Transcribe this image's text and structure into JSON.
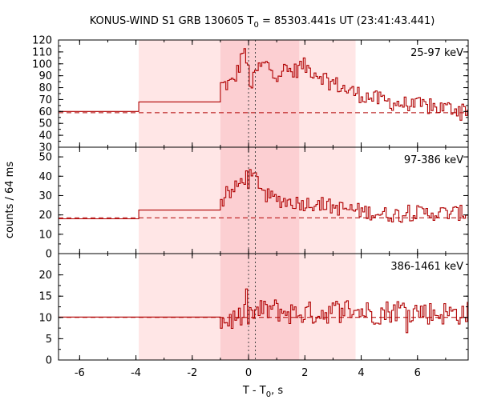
{
  "chart_data": {
    "type": "line",
    "title_main": "KONUS-WIND S1 GRB 130605 T",
    "title_sub": "0",
    "title_rest": " = 85303.441s UT (23:41:43.441)",
    "ylabel": "counts / 64 ms",
    "xlabel_main": "T - T",
    "xlabel_sub": "0",
    "xlabel_rest": ", s",
    "xlim": [
      -6.75,
      7.8
    ],
    "xticks": [
      -6,
      -4,
      -2,
      0,
      2,
      4,
      6
    ],
    "vlines": [
      0.0,
      0.24
    ],
    "shaded_light": [
      -3.9,
      3.8
    ],
    "shaded_dark": [
      -1.0,
      1.8
    ],
    "panels": [
      {
        "label": "25-97 keV",
        "ylim": [
          30,
          120
        ],
        "yticks": [
          30,
          40,
          50,
          60,
          70,
          80,
          90,
          100,
          110,
          120
        ],
        "background": 59,
        "pre_steps": [
          {
            "x0": -6.75,
            "x1": -3.9,
            "y": 60
          },
          {
            "x0": -3.9,
            "x1": -1.0,
            "y": 68
          }
        ],
        "base_level": 60,
        "burst": [
          {
            "t": -0.95,
            "v": 82
          },
          {
            "t": -0.55,
            "v": 84
          },
          {
            "t": -0.35,
            "v": 96
          },
          {
            "t": -0.2,
            "v": 112
          },
          {
            "t": -0.05,
            "v": 100
          },
          {
            "t": 0.1,
            "v": 80
          },
          {
            "t": 0.3,
            "v": 95
          },
          {
            "t": 0.6,
            "v": 100
          },
          {
            "t": 1.0,
            "v": 92
          },
          {
            "t": 1.3,
            "v": 95
          },
          {
            "t": 1.6,
            "v": 93
          },
          {
            "t": 1.9,
            "v": 99
          },
          {
            "t": 2.2,
            "v": 95
          },
          {
            "t": 2.6,
            "v": 90
          },
          {
            "t": 3.0,
            "v": 84
          },
          {
            "t": 3.5,
            "v": 78
          },
          {
            "t": 4.0,
            "v": 74
          },
          {
            "t": 4.6,
            "v": 70
          },
          {
            "t": 5.2,
            "v": 67
          },
          {
            "t": 6.0,
            "v": 65
          },
          {
            "t": 6.8,
            "v": 63
          },
          {
            "t": 7.8,
            "v": 62
          }
        ],
        "noise": 7
      },
      {
        "label": "97-386 keV",
        "ylim": [
          0,
          55
        ],
        "yticks": [
          0,
          10,
          20,
          30,
          40,
          50
        ],
        "background": 18.5,
        "pre_steps": [
          {
            "x0": -6.75,
            "x1": -3.9,
            "y": 18
          },
          {
            "x0": -3.9,
            "x1": -1.0,
            "y": 22.5
          }
        ],
        "base_level": 19,
        "burst": [
          {
            "t": -0.95,
            "v": 27
          },
          {
            "t": -0.5,
            "v": 33
          },
          {
            "t": -0.1,
            "v": 40
          },
          {
            "t": 0.3,
            "v": 39
          },
          {
            "t": 0.6,
            "v": 30
          },
          {
            "t": 1.0,
            "v": 28
          },
          {
            "t": 1.4,
            "v": 27
          },
          {
            "t": 1.9,
            "v": 26
          },
          {
            "t": 2.5,
            "v": 26
          },
          {
            "t": 3.0,
            "v": 24
          },
          {
            "t": 3.5,
            "v": 23
          },
          {
            "t": 4.0,
            "v": 22
          },
          {
            "t": 5.0,
            "v": 20
          },
          {
            "t": 6.0,
            "v": 21
          },
          {
            "t": 7.0,
            "v": 21
          },
          {
            "t": 7.8,
            "v": 21
          }
        ],
        "noise": 4
      },
      {
        "label": "386-1461 keV",
        "ylim": [
          0,
          25
        ],
        "yticks": [
          0,
          5,
          10,
          15,
          20
        ],
        "background": 10,
        "pre_steps": [
          {
            "x0": -6.75,
            "x1": -1.0,
            "y": 10.1
          }
        ],
        "base_level": 10,
        "burst": [
          {
            "t": -0.95,
            "v": 9
          },
          {
            "t": -0.3,
            "v": 10
          },
          {
            "t": 0.2,
            "v": 11
          },
          {
            "t": 0.8,
            "v": 12
          },
          {
            "t": 1.5,
            "v": 11
          },
          {
            "t": 2.5,
            "v": 11
          },
          {
            "t": 3.5,
            "v": 12
          },
          {
            "t": 4.5,
            "v": 11
          },
          {
            "t": 5.5,
            "v": 12
          },
          {
            "t": 6.5,
            "v": 11
          },
          {
            "t": 7.8,
            "v": 11
          }
        ],
        "noise": 2.8
      }
    ]
  }
}
